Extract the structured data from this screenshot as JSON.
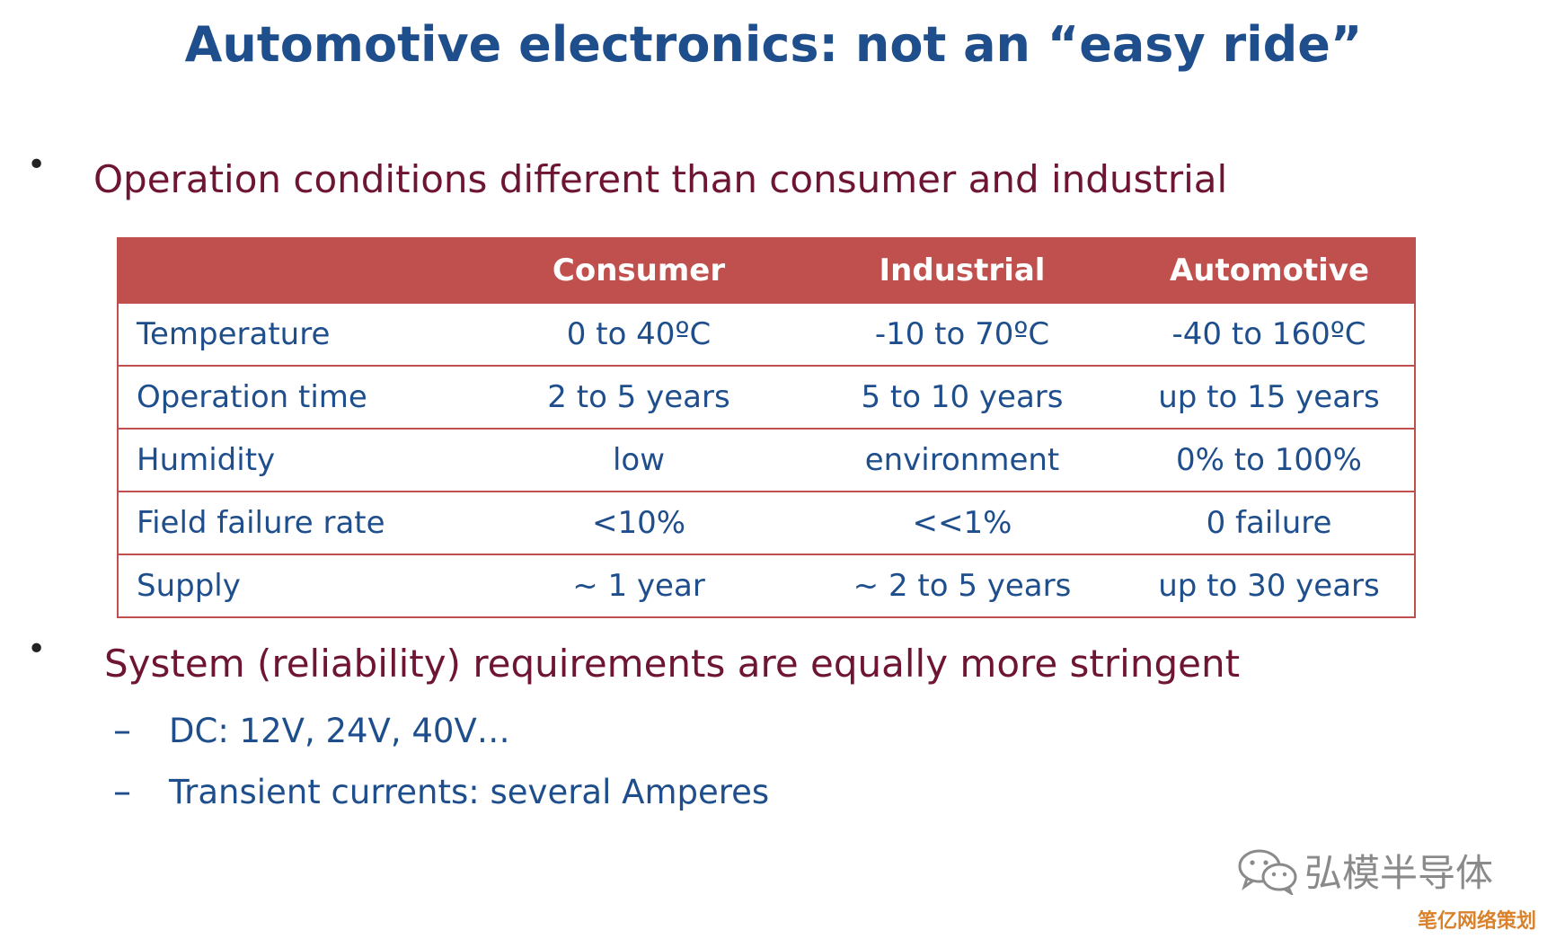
{
  "title": "Automotive electronics: not an “easy ride”",
  "bullets": [
    {
      "marker": "•",
      "text": "Operation conditions different than consumer and industrial"
    },
    {
      "marker": "•",
      "text": "System (reliability) requirements are equally more stringent"
    }
  ],
  "sub_bullets": [
    {
      "marker": "–",
      "text": "DC: 12V, 24V, 40V…"
    },
    {
      "marker": "–",
      "text": "Transient currents: several Amperes"
    }
  ],
  "table": {
    "headers": [
      "",
      "Consumer",
      "Industrial",
      "Automotive"
    ],
    "rows": [
      {
        "label": "Temperature",
        "values": [
          "0 to 40ºC",
          "-10 to 70ºC",
          "-40 to 160ºC"
        ]
      },
      {
        "label": "Operation time",
        "values": [
          "2 to 5 years",
          "5 to 10 years",
          "up to 15 years"
        ]
      },
      {
        "label": "Humidity",
        "values": [
          "low",
          "environment",
          "0% to 100%"
        ]
      },
      {
        "label": "Field failure rate",
        "values": [
          "<10%",
          "<<1%",
          "0 failure"
        ]
      },
      {
        "label": "Supply",
        "values": [
          "~ 1 year",
          "~ 2 to 5 years",
          "up to 30 years"
        ]
      }
    ]
  },
  "watermark": {
    "icon": "wechat-icon",
    "text": "弘模半导体"
  },
  "corner_mark": "笔亿网络策划",
  "colors": {
    "title": "#1f4e8c",
    "bullet_text": "#6e1434",
    "table_header_bg": "#c0504d",
    "table_text": "#1f4e8c"
  }
}
